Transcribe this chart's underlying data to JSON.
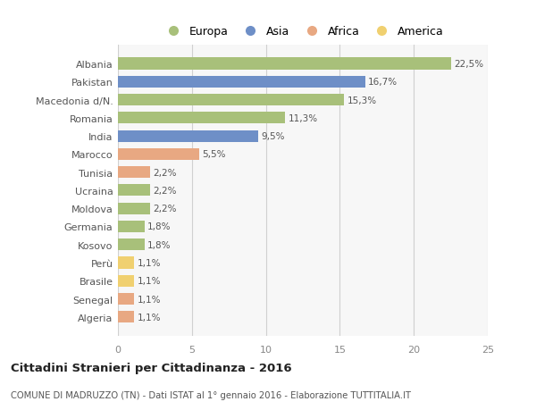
{
  "categories": [
    "Albania",
    "Pakistan",
    "Macedonia d/N.",
    "Romania",
    "India",
    "Marocco",
    "Tunisia",
    "Ucraina",
    "Moldova",
    "Germania",
    "Kosovo",
    "Perù",
    "Brasile",
    "Senegal",
    "Algeria"
  ],
  "values": [
    22.5,
    16.7,
    15.3,
    11.3,
    9.5,
    5.5,
    2.2,
    2.2,
    2.2,
    1.8,
    1.8,
    1.1,
    1.1,
    1.1,
    1.1
  ],
  "labels": [
    "22,5%",
    "16,7%",
    "15,3%",
    "11,3%",
    "9,5%",
    "5,5%",
    "2,2%",
    "2,2%",
    "2,2%",
    "1,8%",
    "1,8%",
    "1,1%",
    "1,1%",
    "1,1%",
    "1,1%"
  ],
  "colors": [
    "#a8c07a",
    "#6e8fc7",
    "#a8c07a",
    "#a8c07a",
    "#6e8fc7",
    "#e8a882",
    "#e8a882",
    "#a8c07a",
    "#a8c07a",
    "#a8c07a",
    "#a8c07a",
    "#f0d070",
    "#f0d070",
    "#e8a882",
    "#e8a882"
  ],
  "legend_labels": [
    "Europa",
    "Asia",
    "Africa",
    "America"
  ],
  "legend_colors": [
    "#a8c07a",
    "#6e8fc7",
    "#e8a882",
    "#f0d070"
  ],
  "xlim": [
    0,
    25
  ],
  "xticks": [
    0,
    5,
    10,
    15,
    20,
    25
  ],
  "title_bold": "Cittadini Stranieri per Cittadinanza - 2016",
  "subtitle": "COMUNE DI MADRUZZO (TN) - Dati ISTAT al 1° gennaio 2016 - Elaborazione TUTTITALIA.IT",
  "background_color": "#ffffff",
  "plot_background": "#f7f7f7"
}
